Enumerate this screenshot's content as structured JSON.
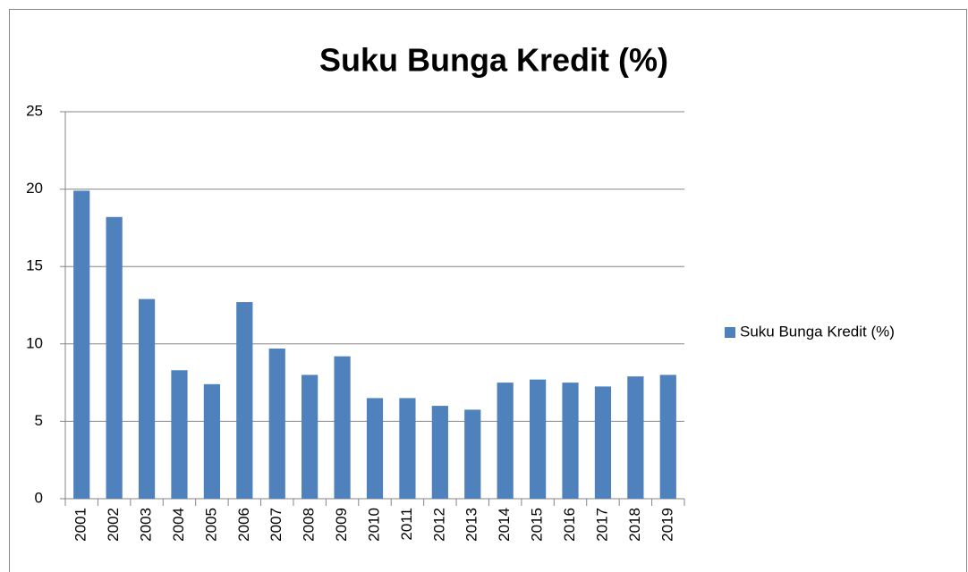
{
  "chart_data": {
    "type": "bar",
    "title": "Suku Bunga Kredit (%)",
    "categories": [
      "2001",
      "2002",
      "2003",
      "2004",
      "2005",
      "2006",
      "2007",
      "2008",
      "2009",
      "2010",
      "2011",
      "2012",
      "2013",
      "2014",
      "2015",
      "2016",
      "2017",
      "2018",
      "2019"
    ],
    "series": [
      {
        "name": "Suku Bunga Kredit (%)",
        "color": "#4f81bd",
        "values": [
          19.9,
          18.2,
          12.9,
          8.3,
          7.4,
          12.7,
          9.7,
          8.0,
          9.2,
          6.5,
          6.5,
          6.0,
          5.75,
          7.5,
          7.7,
          7.5,
          7.25,
          7.9,
          8.0
        ]
      }
    ],
    "ylim": [
      0,
      25
    ],
    "yticks": [
      0,
      5,
      10,
      15,
      20,
      25
    ],
    "grid": true,
    "legend": "right"
  }
}
